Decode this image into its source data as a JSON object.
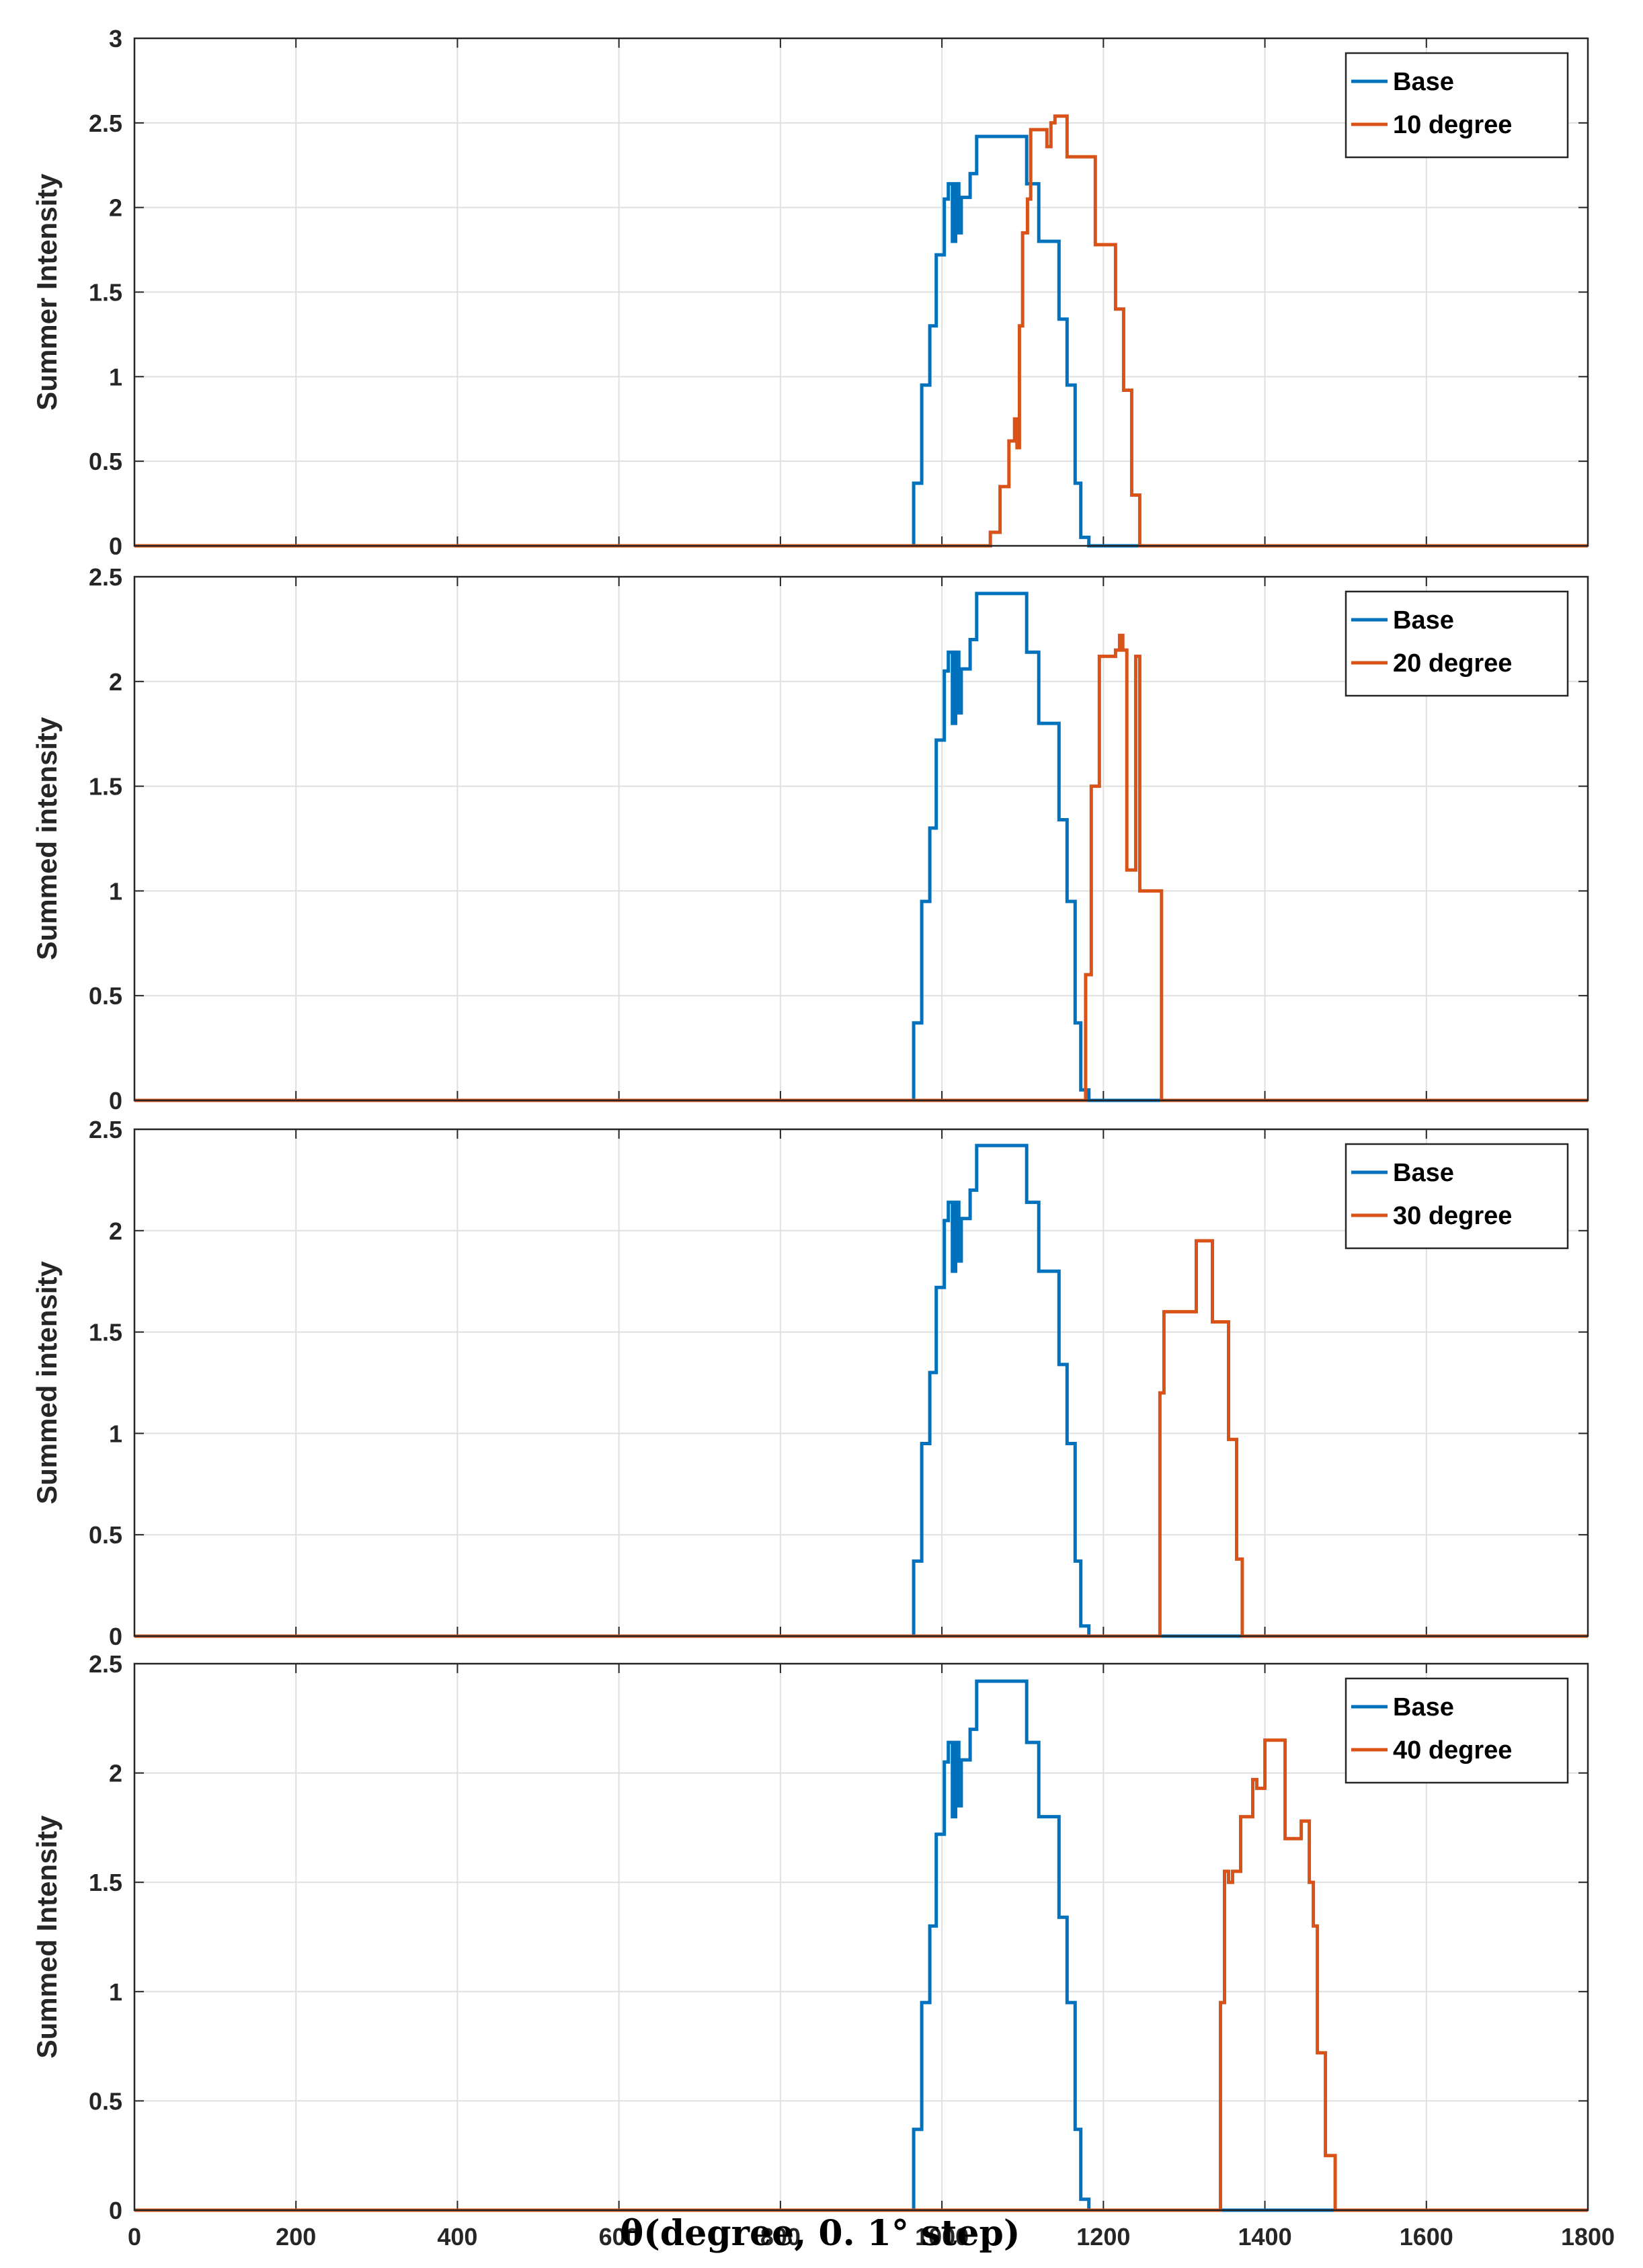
{
  "figure": {
    "xlabel": "θ(degree, 0. 1° step)",
    "xticks": [
      "0",
      "200",
      "400",
      "600",
      "800",
      "1000",
      "1200",
      "1400",
      "1600",
      "1800"
    ]
  },
  "colors": {
    "base": "#0072BD",
    "rotated": "#D95319",
    "grid": "#E0E0E0",
    "axis": "#262626"
  },
  "chart_data": [
    {
      "type": "line",
      "ylabel": "Summer Intensity",
      "xlim": [
        0,
        1800
      ],
      "ylim": [
        0,
        3
      ],
      "yticks": [
        "0",
        "0.5",
        "1",
        "1.5",
        "2",
        "2.5",
        "3"
      ],
      "grid": true,
      "legend_position": "top-right",
      "series": [
        {
          "name": "Base",
          "x": [
            0,
            962,
            965,
            965,
            975,
            975,
            985,
            985,
            993,
            993,
            1003,
            1003,
            1008,
            1008,
            1013,
            1013,
            1017,
            1017,
            1021,
            1021,
            1024,
            1024,
            1028,
            1028,
            1035,
            1035,
            1043,
            1043,
            1105,
            1105,
            1120,
            1120,
            1145,
            1145,
            1155,
            1155,
            1165,
            1165,
            1172,
            1172,
            1182,
            1182,
            1800
          ],
          "y": [
            0,
            0,
            0,
            0.37,
            0.37,
            0.95,
            0.95,
            1.3,
            1.3,
            1.72,
            1.72,
            2.05,
            2.05,
            2.14,
            2.14,
            1.8,
            1.8,
            2.14,
            2.14,
            1.85,
            1.85,
            2.06,
            2.06,
            2.06,
            2.06,
            2.2,
            2.2,
            2.42,
            2.42,
            2.14,
            2.14,
            1.8,
            1.8,
            1.34,
            1.34,
            0.95,
            0.95,
            0.37,
            0.37,
            0.05,
            0.05,
            0,
            0
          ]
        },
        {
          "name": "10 degree",
          "x": [
            0,
            1055,
            1060,
            1060,
            1072,
            1072,
            1083,
            1083,
            1090,
            1090,
            1093,
            1093,
            1096,
            1096,
            1100,
            1100,
            1106,
            1106,
            1110,
            1110,
            1122,
            1122,
            1130,
            1130,
            1135,
            1135,
            1140,
            1140,
            1155,
            1155,
            1172,
            1172,
            1190,
            1190,
            1215,
            1215,
            1225,
            1225,
            1235,
            1235,
            1245,
            1245,
            1800
          ],
          "y": [
            0,
            0,
            0,
            0.08,
            0.08,
            0.35,
            0.35,
            0.62,
            0.62,
            0.75,
            0.75,
            0.58,
            0.58,
            1.3,
            1.3,
            1.85,
            1.85,
            2.05,
            2.05,
            2.46,
            2.46,
            2.46,
            2.46,
            2.36,
            2.36,
            2.5,
            2.5,
            2.54,
            2.54,
            2.3,
            2.3,
            2.3,
            2.3,
            1.78,
            1.78,
            1.4,
            1.4,
            0.92,
            0.92,
            0.3,
            0.3,
            0,
            0
          ]
        }
      ]
    },
    {
      "type": "line",
      "ylabel": "Summed intensity",
      "xlim": [
        0,
        1800
      ],
      "ylim": [
        0,
        2.5
      ],
      "yticks": [
        "0",
        "0.5",
        "1",
        "1.5",
        "2",
        "2.5"
      ],
      "grid": true,
      "legend_position": "top-right",
      "series": [
        {
          "name": "Base",
          "x": [
            0,
            962,
            965,
            965,
            975,
            975,
            985,
            985,
            993,
            993,
            1003,
            1003,
            1008,
            1008,
            1013,
            1013,
            1017,
            1017,
            1021,
            1021,
            1024,
            1024,
            1028,
            1028,
            1035,
            1035,
            1043,
            1043,
            1105,
            1105,
            1120,
            1120,
            1145,
            1145,
            1155,
            1155,
            1165,
            1165,
            1172,
            1172,
            1182,
            1182,
            1800
          ],
          "y": [
            0,
            0,
            0,
            0.37,
            0.37,
            0.95,
            0.95,
            1.3,
            1.3,
            1.72,
            1.72,
            2.05,
            2.05,
            2.14,
            2.14,
            1.8,
            1.8,
            2.14,
            2.14,
            1.85,
            1.85,
            2.06,
            2.06,
            2.06,
            2.06,
            2.2,
            2.2,
            2.42,
            2.42,
            2.14,
            2.14,
            1.8,
            1.8,
            1.34,
            1.34,
            0.95,
            0.95,
            0.37,
            0.37,
            0.05,
            0.05,
            0,
            0
          ]
        },
        {
          "name": "20 degree",
          "x": [
            0,
            1178,
            1178,
            1185,
            1185,
            1195,
            1195,
            1215,
            1215,
            1220,
            1220,
            1224,
            1224,
            1229,
            1229,
            1240,
            1240,
            1245,
            1245,
            1260,
            1260,
            1272,
            1272,
            1800
          ],
          "y": [
            0,
            0,
            0.6,
            0.6,
            1.5,
            1.5,
            2.12,
            2.12,
            2.15,
            2.15,
            2.22,
            2.22,
            2.15,
            2.15,
            1.1,
            1.1,
            2.12,
            2.12,
            1.0,
            1.0,
            1.0,
            1.0,
            0,
            0
          ]
        }
      ]
    },
    {
      "type": "line",
      "ylabel": "Summed intensity",
      "xlim": [
        0,
        1800
      ],
      "ylim": [
        0,
        2.5
      ],
      "yticks": [
        "0",
        "0.5",
        "1",
        "1.5",
        "2",
        "2.5"
      ],
      "grid": true,
      "legend_position": "top-right",
      "series": [
        {
          "name": "Base",
          "x": [
            0,
            962,
            965,
            965,
            975,
            975,
            985,
            985,
            993,
            993,
            1003,
            1003,
            1008,
            1008,
            1013,
            1013,
            1017,
            1017,
            1021,
            1021,
            1024,
            1024,
            1028,
            1028,
            1035,
            1035,
            1043,
            1043,
            1105,
            1105,
            1120,
            1120,
            1145,
            1145,
            1155,
            1155,
            1165,
            1165,
            1172,
            1172,
            1182,
            1182,
            1800
          ],
          "y": [
            0,
            0,
            0,
            0.37,
            0.37,
            0.95,
            0.95,
            1.3,
            1.3,
            1.72,
            1.72,
            2.05,
            2.05,
            2.14,
            2.14,
            1.8,
            1.8,
            2.14,
            2.14,
            1.85,
            1.85,
            2.06,
            2.06,
            2.06,
            2.06,
            2.2,
            2.2,
            2.42,
            2.42,
            2.14,
            2.14,
            1.8,
            1.8,
            1.34,
            1.34,
            0.95,
            0.95,
            0.37,
            0.37,
            0.05,
            0.05,
            0,
            0
          ]
        },
        {
          "name": "30 degree",
          "x": [
            0,
            1268,
            1270,
            1270,
            1275,
            1275,
            1315,
            1315,
            1335,
            1335,
            1355,
            1355,
            1365,
            1365,
            1372,
            1372,
            1800
          ],
          "y": [
            0,
            0,
            0,
            1.2,
            1.2,
            1.6,
            1.6,
            1.95,
            1.95,
            1.55,
            1.55,
            0.97,
            0.97,
            0.38,
            0.38,
            0,
            0
          ]
        }
      ]
    },
    {
      "type": "line",
      "ylabel": "Summed Intensity",
      "xlim": [
        0,
        1800
      ],
      "ylim": [
        0,
        2.5
      ],
      "yticks": [
        "0",
        "0.5",
        "1",
        "1.5",
        "2",
        "2.5"
      ],
      "grid": true,
      "legend_position": "top-right",
      "series": [
        {
          "name": "Base",
          "x": [
            0,
            962,
            965,
            965,
            975,
            975,
            985,
            985,
            993,
            993,
            1003,
            1003,
            1008,
            1008,
            1013,
            1013,
            1017,
            1017,
            1021,
            1021,
            1024,
            1024,
            1028,
            1028,
            1035,
            1035,
            1043,
            1043,
            1105,
            1105,
            1120,
            1120,
            1145,
            1145,
            1155,
            1155,
            1165,
            1165,
            1172,
            1172,
            1182,
            1182,
            1800
          ],
          "y": [
            0,
            0,
            0,
            0.37,
            0.37,
            0.95,
            0.95,
            1.3,
            1.3,
            1.72,
            1.72,
            2.05,
            2.05,
            2.14,
            2.14,
            1.8,
            1.8,
            2.14,
            2.14,
            1.85,
            1.85,
            2.06,
            2.06,
            2.06,
            2.06,
            2.2,
            2.2,
            2.42,
            2.42,
            2.14,
            2.14,
            1.8,
            1.8,
            1.34,
            1.34,
            0.95,
            0.95,
            0.37,
            0.37,
            0.05,
            0.05,
            0,
            0
          ]
        },
        {
          "name": "40 degree",
          "x": [
            0,
            1345,
            1345,
            1350,
            1350,
            1355,
            1355,
            1360,
            1360,
            1370,
            1370,
            1385,
            1385,
            1390,
            1390,
            1400,
            1400,
            1425,
            1425,
            1445,
            1445,
            1455,
            1455,
            1460,
            1460,
            1465,
            1465,
            1475,
            1475,
            1487,
            1487,
            1800
          ],
          "y": [
            0,
            0,
            0.95,
            0.95,
            1.55,
            1.55,
            1.5,
            1.5,
            1.55,
            1.55,
            1.8,
            1.8,
            1.97,
            1.97,
            1.93,
            1.93,
            2.15,
            2.15,
            1.7,
            1.7,
            1.78,
            1.78,
            1.5,
            1.5,
            1.3,
            1.3,
            0.72,
            0.72,
            0.25,
            0.25,
            0,
            0
          ]
        }
      ]
    }
  ]
}
